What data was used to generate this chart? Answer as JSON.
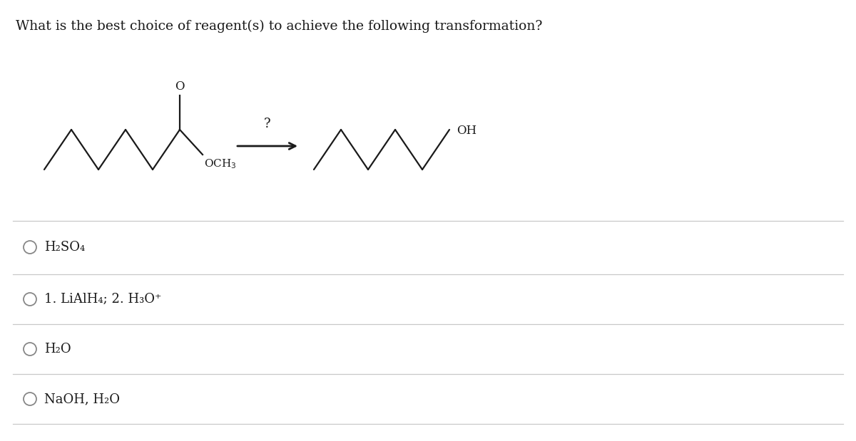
{
  "title": "What is the best choice of reagent(s) to achieve the following transformation?",
  "title_fontsize": 13.5,
  "options": [
    "H₂SO₄",
    "1. LiAlH₄; 2. H₃O⁺",
    "H₂O",
    "NaOH, H₂O"
  ],
  "panel_color": "#ffffff",
  "text_color": "#1a1a1a",
  "line_color": "#c8c8c8",
  "structure_color": "#1a1a1a",
  "arrow_color": "#1a1a1a",
  "circle_color": "#888888",
  "option_font_size": 13
}
